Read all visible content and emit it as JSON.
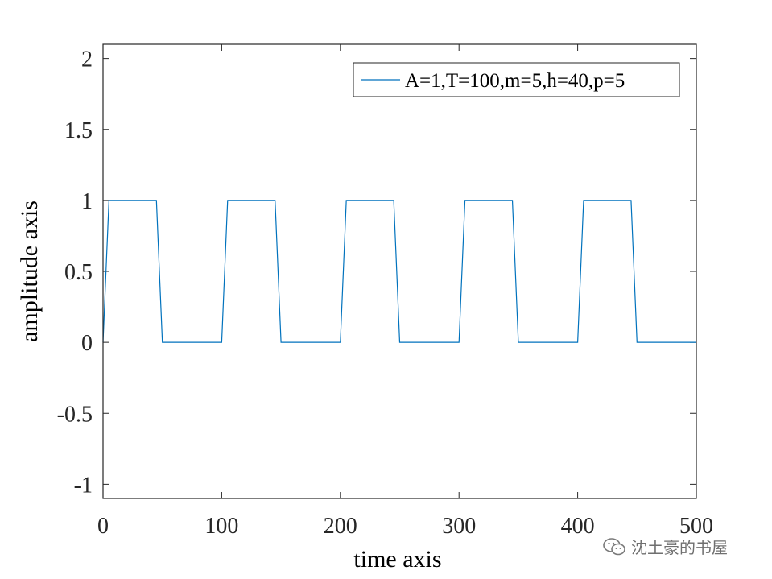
{
  "chart_data": {
    "type": "line",
    "xlabel": "time axis",
    "ylabel": "amplitude axis",
    "xlim": [
      0,
      500
    ],
    "ylim": [
      -1.1,
      2.1
    ],
    "xticks": [
      0,
      100,
      200,
      300,
      400,
      500
    ],
    "yticks": [
      -1,
      -0.5,
      0,
      0.5,
      1,
      1.5,
      2
    ],
    "xtick_labels": [
      "0",
      "100",
      "200",
      "300",
      "400",
      "500"
    ],
    "ytick_labels": [
      "-1",
      "-0.5",
      "0",
      "0.5",
      "1",
      "1.5",
      "2"
    ],
    "grid": false,
    "legend_position": "top-right",
    "series": [
      {
        "name": "A=1,T=100,m=5,h=40,p=5",
        "color": "#0072BD",
        "x": [
          0,
          5,
          45,
          50,
          100,
          105,
          145,
          150,
          200,
          205,
          245,
          250,
          300,
          305,
          345,
          350,
          400,
          405,
          445,
          450,
          500
        ],
        "y": [
          0,
          1,
          1,
          0,
          0,
          1,
          1,
          0,
          0,
          1,
          1,
          0,
          0,
          1,
          1,
          0,
          0,
          1,
          1,
          0,
          0
        ]
      }
    ]
  },
  "watermark": {
    "text": "沈土豪的书屋",
    "icon": "wechat-icon"
  }
}
